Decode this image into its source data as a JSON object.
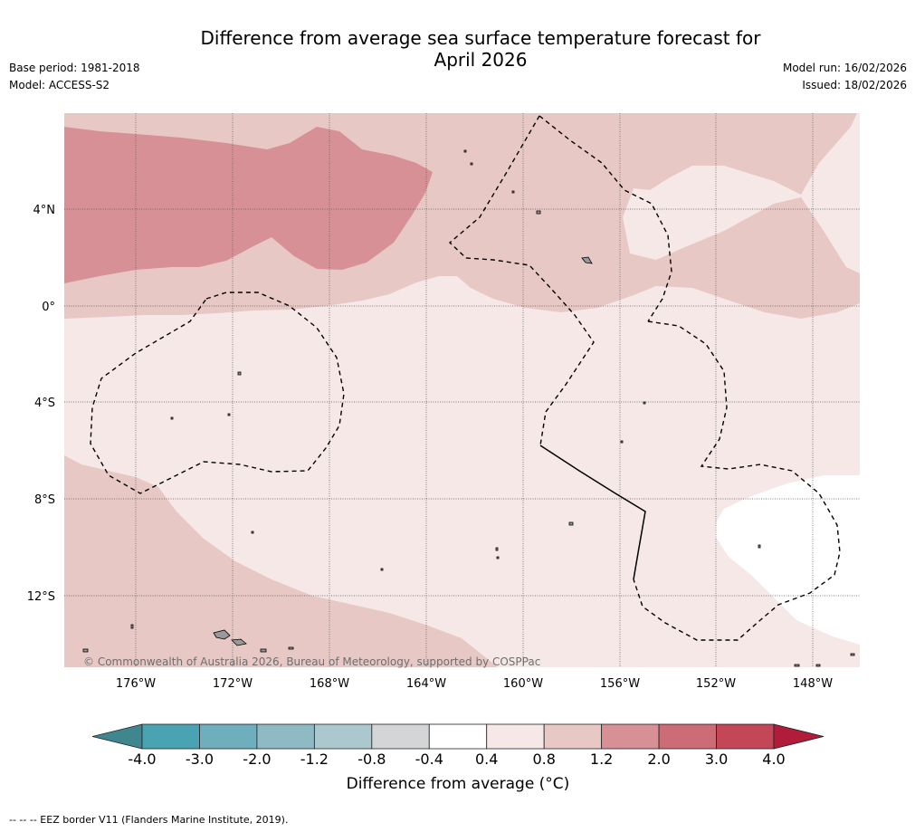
{
  "header": {
    "title_line1": "Difference from average sea surface temperature forecast for",
    "title_line2": "April 2026",
    "base_period": "Base period: 1981-2018",
    "model": "Model: ACCESS-S2",
    "model_run": "Model run: 16/02/2026",
    "issued": "Issued: 18/02/2026"
  },
  "map": {
    "lat_labels": [
      "4°N",
      "0°",
      "4°S",
      "8°S",
      "12°S"
    ],
    "lon_labels": [
      "176°W",
      "172°W",
      "168°W",
      "164°W",
      "160°W",
      "156°W",
      "152°W",
      "148°W"
    ],
    "copyright": "© Commonwealth of Australia 2026, Bureau of Meteorology, supported by COSPPac",
    "colors": {
      "band_0_4_to_0_8": "#f5e8e7",
      "band_0_8_to_1_2": "#e8c8c4",
      "band_1_2_to_2_0": "#d79096",
      "white": "#ffffff",
      "gridline": "#555555",
      "land": "#999999"
    }
  },
  "colorbar": {
    "title": "Difference from average (°C)",
    "ticks": [
      "-4.0",
      "-3.0",
      "-2.0",
      "-1.2",
      "-0.8",
      "-0.4",
      "0.4",
      "0.8",
      "1.2",
      "2.0",
      "3.0",
      "4.0"
    ],
    "colors": [
      "#3f868e",
      "#4aa3b3",
      "#6eaebd",
      "#8fbac4",
      "#aac8cd",
      "#d3d5d7",
      "#ffffff",
      "#f5e8e7",
      "#e8c8c4",
      "#d79096",
      "#cc6c76",
      "#c34757",
      "#b01c3a"
    ]
  },
  "footer": {
    "eez_note": "--  --  -- EEZ border V11 (Flanders Marine Institute, 2019)."
  }
}
